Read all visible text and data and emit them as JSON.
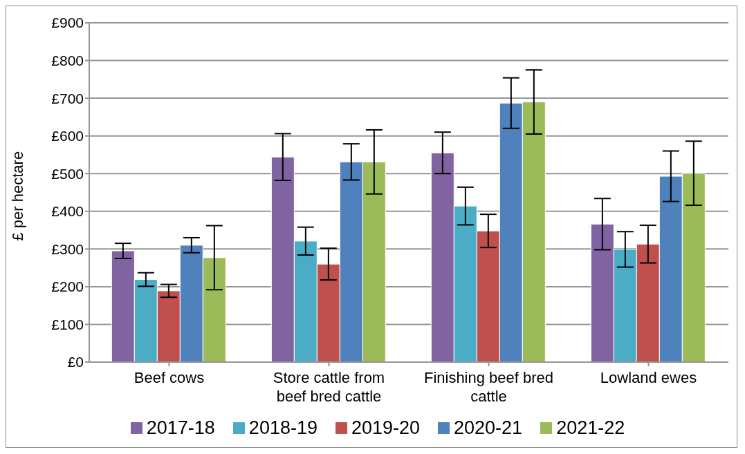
{
  "chart_data": {
    "type": "bar",
    "ylabel": "£ per hectare",
    "categories": [
      "Beef cows",
      "Store cattle from beef bred cattle",
      "Finishing beef bred cattle",
      "Lowland ewes"
    ],
    "series": [
      {
        "name": "2017-18",
        "color": "#8064a2",
        "values": [
          295,
          544,
          555,
          366
        ],
        "errors": [
          20,
          62,
          55,
          68
        ]
      },
      {
        "name": "2018-19",
        "color": "#4bacc6",
        "values": [
          219,
          321,
          414,
          299
        ],
        "errors": [
          18,
          37,
          50,
          47
        ]
      },
      {
        "name": "2019-20",
        "color": "#c0504d",
        "values": [
          189,
          260,
          348,
          313
        ],
        "errors": [
          17,
          42,
          44,
          50
        ]
      },
      {
        "name": "2020-21",
        "color": "#4f81bd",
        "values": [
          310,
          531,
          687,
          493
        ],
        "errors": [
          20,
          48,
          67,
          67
        ]
      },
      {
        "name": "2021-22",
        "color": "#9bbb59",
        "values": [
          277,
          531,
          690,
          501
        ],
        "errors": [
          85,
          85,
          85,
          85
        ]
      }
    ],
    "ylim": [
      0,
      900
    ],
    "yticks": [
      {
        "value": 0,
        "label": "£0"
      },
      {
        "value": 100,
        "label": "£100"
      },
      {
        "value": 200,
        "label": "£200"
      },
      {
        "value": 300,
        "label": "£300"
      },
      {
        "value": 400,
        "label": "£400"
      },
      {
        "value": 500,
        "label": "£500"
      },
      {
        "value": 600,
        "label": "£600"
      },
      {
        "value": 700,
        "label": "£700"
      },
      {
        "value": 800,
        "label": "£800"
      },
      {
        "value": 900,
        "label": "£900"
      }
    ],
    "grid": "y",
    "legend": "bottom"
  }
}
